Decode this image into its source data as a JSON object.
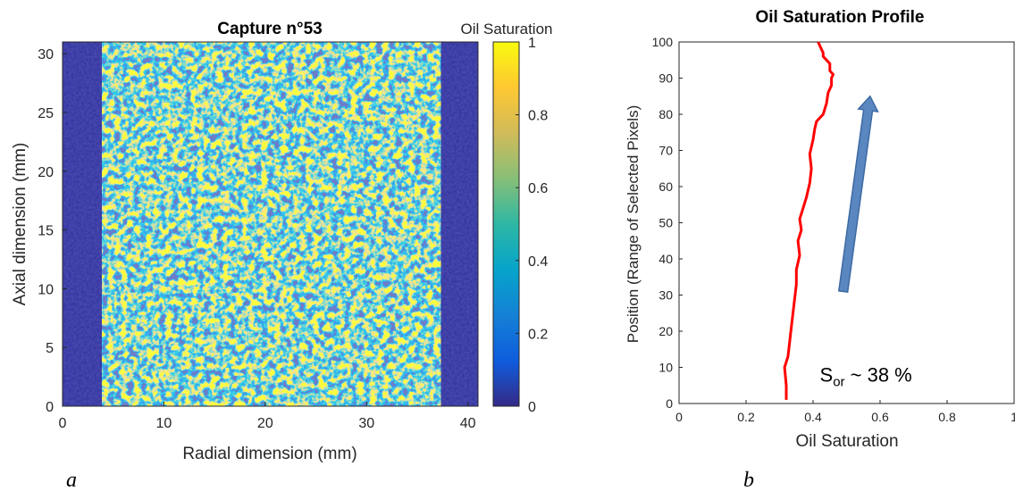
{
  "chart_data": [
    {
      "type": "heatmap",
      "panel_label": "a",
      "title": "Capture n°53",
      "xlabel": "Radial dimension (mm)",
      "ylabel": "Axial dimension (mm)",
      "xlim": [
        0,
        41
      ],
      "ylim": [
        0,
        31
      ],
      "xticks": [
        "0",
        "10",
        "20",
        "30",
        "40"
      ],
      "yticks": [
        "0",
        "5",
        "10",
        "15",
        "20",
        "25",
        "30"
      ],
      "sample_region_mm": [
        3.9,
        37.3
      ],
      "colorbar": {
        "label": "Oil Saturation",
        "range": [
          0,
          1
        ],
        "ticks": [
          "0",
          "0.2",
          "0.4",
          "0.6",
          "0.8",
          "1"
        ],
        "colors": [
          "#352a87",
          "#0f5cdd",
          "#1481d6",
          "#06a4ca",
          "#2eb7a4",
          "#87bf77",
          "#d1bb59",
          "#fec832",
          "#f9fb0e"
        ]
      }
    },
    {
      "type": "line",
      "panel_label": "b",
      "title": "Oil Saturation Profile",
      "xlabel": "Oil Saturation",
      "ylabel": "Position (Range of Selected Pixels)",
      "xlim": [
        0,
        1
      ],
      "ylim": [
        0,
        100
      ],
      "xticks": [
        "0",
        "0.2",
        "0.4",
        "0.6",
        "0.8",
        "1"
      ],
      "yticks": [
        "0",
        "10",
        "20",
        "30",
        "40",
        "50",
        "60",
        "70",
        "80",
        "90",
        "100"
      ],
      "series": [
        {
          "color": "#ff0000",
          "x": [
            0.32,
            0.32,
            0.315,
            0.325,
            0.33,
            0.335,
            0.34,
            0.345,
            0.35,
            0.35,
            0.36,
            0.355,
            0.365,
            0.36,
            0.37,
            0.38,
            0.39,
            0.395,
            0.39,
            0.4,
            0.405,
            0.41,
            0.43,
            0.44,
            0.445,
            0.455,
            0.455,
            0.46,
            0.45,
            0.45,
            0.43,
            0.43,
            0.42,
            0.415
          ],
          "y": [
            1,
            5,
            10,
            13,
            17,
            21,
            25,
            29,
            33,
            37,
            41,
            45,
            48,
            51,
            54,
            57,
            61,
            65,
            69,
            73,
            76,
            78,
            80,
            83,
            86,
            88,
            90,
            91,
            92,
            94,
            96,
            97,
            99,
            100
          ]
        }
      ],
      "arrow": {
        "from": [
          0.49,
          31
        ],
        "to": [
          0.57,
          85
        ],
        "color": "#5b87c0"
      },
      "annotation": {
        "label_main": "S",
        "label_sub": "or",
        "label_rest": " ~ 38 %",
        "x": 0.42,
        "y": 8
      }
    }
  ]
}
